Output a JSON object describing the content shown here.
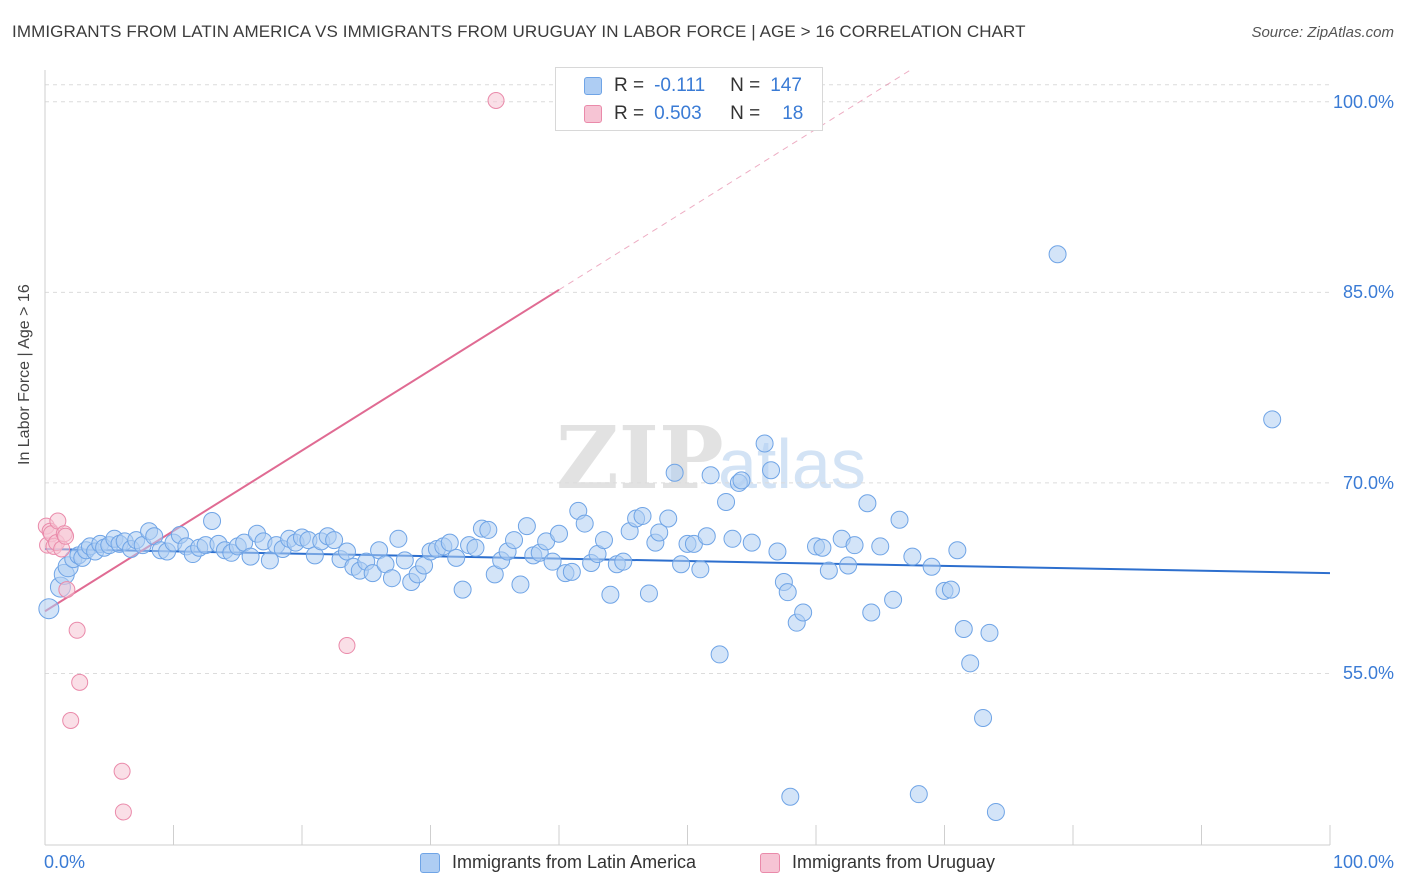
{
  "title": "IMMIGRANTS FROM LATIN AMERICA VS IMMIGRANTS FROM URUGUAY IN LABOR FORCE | AGE > 16 CORRELATION CHART",
  "source": "Source: ZipAtlas.com",
  "watermark": {
    "zip": "ZIP",
    "atlas": "atlas"
  },
  "colors": {
    "blue": "#6fa4e6",
    "blue_fill": "#aecdf3",
    "blue_line": "#2d6fce",
    "pink": "#ea8aaa",
    "pink_fill": "#f6c4d4",
    "pink_line": "#e06b93",
    "axis_text": "#3a7bd5"
  },
  "legend": {
    "rows": [
      {
        "r_label": "R =",
        "r_value": "-0.111",
        "n_label": "N =",
        "n_value": "147"
      },
      {
        "r_label": "R =",
        "r_value": "0.503",
        "n_label": "N =",
        "n_value": "18"
      }
    ]
  },
  "chart_data": {
    "type": "scatter",
    "title": "IMMIGRANTS FROM LATIN AMERICA VS IMMIGRANTS FROM URUGUAY IN LABOR FORCE | AGE > 16 CORRELATION CHART",
    "xlabel": "",
    "ylabel": "In Labor Force | Age > 16",
    "xlim": [
      0,
      100
    ],
    "ylim": [
      41.5,
      102.5
    ],
    "x_tick_labels": [
      "0.0%",
      "100.0%"
    ],
    "y_ticks": [
      {
        "value": 55,
        "label": "55.0%"
      },
      {
        "value": 70,
        "label": "70.0%"
      },
      {
        "value": 85,
        "label": "85.0%"
      },
      {
        "value": 100,
        "label": "100.0%"
      }
    ],
    "grid": "horizontal dashed",
    "legend_position": "bottom",
    "series": [
      {
        "name": "Immigrants from Latin America",
        "color": "#6fa4e6",
        "trend": {
          "x": [
            0,
            100
          ],
          "y": [
            64.8,
            62.9
          ]
        },
        "points": [
          [
            0.3,
            60.1
          ],
          [
            1.2,
            61.8
          ],
          [
            1.5,
            62.8
          ],
          [
            1.8,
            63.4
          ],
          [
            2.2,
            64.0
          ],
          [
            2.6,
            64.3
          ],
          [
            2.9,
            64.1
          ],
          [
            3.2,
            64.7
          ],
          [
            3.5,
            65.0
          ],
          [
            3.9,
            64.6
          ],
          [
            4.3,
            65.2
          ],
          [
            4.6,
            64.9
          ],
          [
            5.0,
            65.1
          ],
          [
            5.4,
            65.6
          ],
          [
            5.8,
            65.2
          ],
          [
            6.2,
            65.4
          ],
          [
            6.7,
            64.8
          ],
          [
            7.1,
            65.5
          ],
          [
            7.6,
            65.1
          ],
          [
            8.1,
            66.2
          ],
          [
            8.5,
            65.8
          ],
          [
            9.0,
            64.7
          ],
          [
            9.5,
            64.6
          ],
          [
            10.0,
            65.3
          ],
          [
            10.5,
            65.9
          ],
          [
            11.0,
            65.0
          ],
          [
            11.5,
            64.4
          ],
          [
            12.0,
            64.9
          ],
          [
            12.5,
            65.1
          ],
          [
            13.0,
            67.0
          ],
          [
            13.5,
            65.2
          ],
          [
            14.0,
            64.7
          ],
          [
            14.5,
            64.5
          ],
          [
            15.0,
            65.0
          ],
          [
            15.5,
            65.3
          ],
          [
            16.0,
            64.2
          ],
          [
            16.5,
            66.0
          ],
          [
            17.0,
            65.4
          ],
          [
            17.5,
            63.9
          ],
          [
            18.0,
            65.1
          ],
          [
            18.5,
            64.8
          ],
          [
            19.0,
            65.6
          ],
          [
            19.5,
            65.3
          ],
          [
            20.0,
            65.7
          ],
          [
            20.5,
            65.5
          ],
          [
            21.0,
            64.3
          ],
          [
            21.5,
            65.4
          ],
          [
            22.0,
            65.8
          ],
          [
            22.5,
            65.5
          ],
          [
            23.0,
            64.0
          ],
          [
            23.5,
            64.6
          ],
          [
            24.0,
            63.4
          ],
          [
            24.5,
            63.1
          ],
          [
            25.0,
            63.8
          ],
          [
            25.5,
            62.9
          ],
          [
            26.0,
            64.7
          ],
          [
            26.5,
            63.6
          ],
          [
            27.0,
            62.5
          ],
          [
            27.5,
            65.6
          ],
          [
            28.0,
            63.9
          ],
          [
            28.5,
            62.2
          ],
          [
            29.0,
            62.8
          ],
          [
            29.5,
            63.5
          ],
          [
            30.0,
            64.6
          ],
          [
            30.5,
            64.8
          ],
          [
            31.0,
            65.0
          ],
          [
            31.5,
            65.3
          ],
          [
            32.0,
            64.1
          ],
          [
            32.5,
            61.6
          ],
          [
            33.0,
            65.1
          ],
          [
            33.5,
            64.9
          ],
          [
            34.0,
            66.4
          ],
          [
            34.5,
            66.3
          ],
          [
            35.0,
            62.8
          ],
          [
            35.5,
            63.9
          ],
          [
            36.0,
            64.6
          ],
          [
            36.5,
            65.5
          ],
          [
            37.0,
            62.0
          ],
          [
            37.5,
            66.6
          ],
          [
            38.0,
            64.3
          ],
          [
            38.5,
            64.5
          ],
          [
            39.0,
            65.4
          ],
          [
            39.5,
            63.8
          ],
          [
            40.0,
            66.0
          ],
          [
            40.5,
            62.9
          ],
          [
            41.0,
            63.0
          ],
          [
            41.5,
            67.8
          ],
          [
            42.0,
            66.8
          ],
          [
            42.5,
            63.7
          ],
          [
            43.0,
            64.4
          ],
          [
            43.5,
            65.5
          ],
          [
            44.0,
            61.2
          ],
          [
            44.5,
            63.6
          ],
          [
            45.0,
            63.8
          ],
          [
            45.5,
            66.2
          ],
          [
            46.0,
            67.2
          ],
          [
            46.5,
            67.4
          ],
          [
            47.0,
            61.3
          ],
          [
            47.5,
            65.3
          ],
          [
            47.8,
            66.1
          ],
          [
            48.5,
            67.2
          ],
          [
            49.0,
            70.8
          ],
          [
            49.5,
            63.6
          ],
          [
            50.0,
            65.2
          ],
          [
            50.5,
            65.2
          ],
          [
            51.0,
            63.2
          ],
          [
            51.5,
            65.8
          ],
          [
            51.8,
            70.6
          ],
          [
            52.5,
            56.5
          ],
          [
            53.0,
            68.5
          ],
          [
            53.5,
            65.6
          ],
          [
            54.0,
            70.0
          ],
          [
            54.2,
            70.2
          ],
          [
            55.0,
            65.3
          ],
          [
            56.0,
            73.1
          ],
          [
            56.5,
            71.0
          ],
          [
            57.0,
            64.6
          ],
          [
            57.5,
            62.2
          ],
          [
            57.8,
            61.4
          ],
          [
            58.0,
            45.3
          ],
          [
            58.5,
            59.0
          ],
          [
            59.0,
            59.8
          ],
          [
            60.0,
            65.0
          ],
          [
            60.5,
            64.9
          ],
          [
            61.0,
            63.1
          ],
          [
            62.0,
            65.6
          ],
          [
            62.5,
            63.5
          ],
          [
            63.0,
            65.1
          ],
          [
            64.0,
            68.4
          ],
          [
            64.3,
            59.8
          ],
          [
            65.0,
            65.0
          ],
          [
            66.0,
            60.8
          ],
          [
            66.5,
            67.1
          ],
          [
            67.5,
            64.2
          ],
          [
            68.0,
            45.5
          ],
          [
            69.0,
            63.4
          ],
          [
            70.0,
            61.5
          ],
          [
            70.5,
            61.6
          ],
          [
            71.0,
            64.7
          ],
          [
            71.5,
            58.5
          ],
          [
            72.0,
            55.8
          ],
          [
            73.0,
            51.5
          ],
          [
            73.5,
            58.2
          ],
          [
            74.0,
            44.1
          ],
          [
            78.8,
            88.0
          ],
          [
            95.5,
            75.0
          ]
        ]
      },
      {
        "name": "Immigrants from Uruguay",
        "color": "#ea8aaa",
        "trend": {
          "x": [
            0,
            40
          ],
          "y": [
            59.9,
            85.2
          ]
        },
        "points": [
          [
            0.1,
            66.6
          ],
          [
            0.2,
            65.1
          ],
          [
            0.4,
            66.2
          ],
          [
            0.5,
            66.0
          ],
          [
            0.7,
            65.0
          ],
          [
            0.9,
            65.3
          ],
          [
            1.0,
            67.0
          ],
          [
            1.3,
            64.8
          ],
          [
            1.5,
            66.0
          ],
          [
            1.6,
            65.8
          ],
          [
            1.7,
            61.6
          ],
          [
            2.0,
            51.3
          ],
          [
            2.5,
            58.4
          ],
          [
            2.7,
            54.3
          ],
          [
            6.0,
            47.3
          ],
          [
            6.1,
            44.1
          ],
          [
            23.5,
            57.2
          ],
          [
            35.1,
            100.1
          ]
        ]
      }
    ]
  }
}
